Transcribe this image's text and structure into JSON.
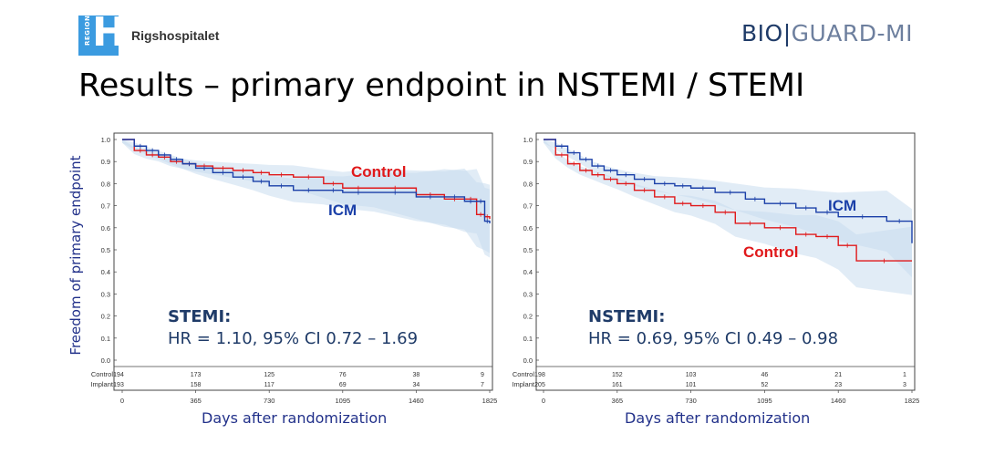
{
  "header": {
    "logo_left_badge": "REGION",
    "logo_left_letter": "H",
    "logo_left_name": "Rigshospitalet",
    "logo_right_part1": "BIO",
    "logo_right_sep": "|",
    "logo_right_part2": "GUARD-MI"
  },
  "slide_title": "Results – primary endpoint in NSTEMI / STEMI",
  "shared_y_label": "Freedom of primary endpoint",
  "colors": {
    "control": "#e0191b",
    "icm": "#1a3fa8",
    "ci_band": "#c9dcef",
    "text_blue": "#1f3b68"
  },
  "chart_data": [
    {
      "type": "line",
      "subtype": "kaplan-meier",
      "panel": "STEMI",
      "xlabel": "Days after randomization",
      "ylabel": "Freedom of primary endpoint",
      "xlim": [
        0,
        1825
      ],
      "ylim": [
        0,
        1
      ],
      "x_ticks": [
        "0",
        "365",
        "730",
        "1095",
        "1460",
        "1825"
      ],
      "y_ticks": [
        "0.0",
        "0.1",
        "0.2",
        "0.3",
        "0.4",
        "0.5",
        "0.6",
        "0.7",
        "0.8",
        "0.9",
        "1.0"
      ],
      "series": [
        {
          "name": "Control",
          "x": [
            0,
            60,
            120,
            180,
            240,
            300,
            365,
            450,
            550,
            650,
            730,
            850,
            1000,
            1095,
            1250,
            1460,
            1600,
            1700,
            1760,
            1800,
            1825
          ],
          "y": [
            1.0,
            0.95,
            0.93,
            0.92,
            0.9,
            0.89,
            0.88,
            0.87,
            0.86,
            0.85,
            0.84,
            0.83,
            0.8,
            0.78,
            0.78,
            0.75,
            0.73,
            0.73,
            0.66,
            0.65,
            0.64
          ]
        },
        {
          "name": "ICM",
          "x": [
            0,
            60,
            120,
            180,
            240,
            300,
            365,
            450,
            550,
            650,
            730,
            850,
            1000,
            1095,
            1250,
            1460,
            1600,
            1700,
            1760,
            1800,
            1825
          ],
          "y": [
            1.0,
            0.97,
            0.95,
            0.93,
            0.91,
            0.89,
            0.87,
            0.85,
            0.83,
            0.81,
            0.79,
            0.77,
            0.77,
            0.76,
            0.76,
            0.74,
            0.74,
            0.72,
            0.72,
            0.63,
            0.62
          ]
        }
      ],
      "annotations": {
        "control_label": "Control",
        "icm_label": "ICM"
      },
      "stats": {
        "heading": "STEMI:",
        "hr_text": "HR = 1.10, 95% CI 0.72 – 1.69"
      },
      "risk_table": {
        "rows": [
          {
            "label": "Control",
            "values": [
              "194",
              "173",
              "125",
              "76",
              "38",
              "9"
            ]
          },
          {
            "label": "Implant",
            "values": [
              "193",
              "158",
              "117",
              "69",
              "34",
              "7"
            ]
          }
        ]
      }
    },
    {
      "type": "line",
      "subtype": "kaplan-meier",
      "panel": "NSTEMI",
      "xlabel": "Days after randomization",
      "xlim": [
        0,
        1825
      ],
      "ylim": [
        0,
        1
      ],
      "x_ticks": [
        "0",
        "365",
        "730",
        "1095",
        "1460",
        "1825"
      ],
      "y_ticks": [
        "0.0",
        "0.1",
        "0.2",
        "0.3",
        "0.4",
        "0.5",
        "0.6",
        "0.7",
        "0.8",
        "0.9",
        "1.0"
      ],
      "series": [
        {
          "name": "Control",
          "x": [
            0,
            60,
            120,
            180,
            240,
            300,
            365,
            450,
            550,
            650,
            730,
            850,
            950,
            1095,
            1250,
            1350,
            1460,
            1550,
            1825
          ],
          "y": [
            1.0,
            0.93,
            0.89,
            0.86,
            0.84,
            0.82,
            0.8,
            0.77,
            0.74,
            0.71,
            0.7,
            0.67,
            0.62,
            0.6,
            0.57,
            0.56,
            0.52,
            0.45,
            0.45
          ]
        },
        {
          "name": "ICM",
          "x": [
            0,
            60,
            120,
            180,
            240,
            300,
            365,
            450,
            550,
            650,
            730,
            850,
            1000,
            1095,
            1250,
            1350,
            1460,
            1700,
            1825
          ],
          "y": [
            1.0,
            0.97,
            0.94,
            0.91,
            0.88,
            0.86,
            0.84,
            0.82,
            0.8,
            0.79,
            0.78,
            0.76,
            0.73,
            0.71,
            0.69,
            0.67,
            0.65,
            0.63,
            0.53
          ]
        }
      ],
      "annotations": {
        "control_label": "Control",
        "icm_label": "ICM"
      },
      "stats": {
        "heading": "NSTEMI:",
        "hr_text": "HR = 0.69, 95% CI 0.49 – 0.98"
      },
      "risk_table": {
        "rows": [
          {
            "label": "Control",
            "values": [
              "198",
              "152",
              "103",
              "46",
              "21",
              "1"
            ]
          },
          {
            "label": "Implant",
            "values": [
              "205",
              "161",
              "101",
              "52",
              "23",
              "3"
            ]
          }
        ]
      }
    }
  ]
}
